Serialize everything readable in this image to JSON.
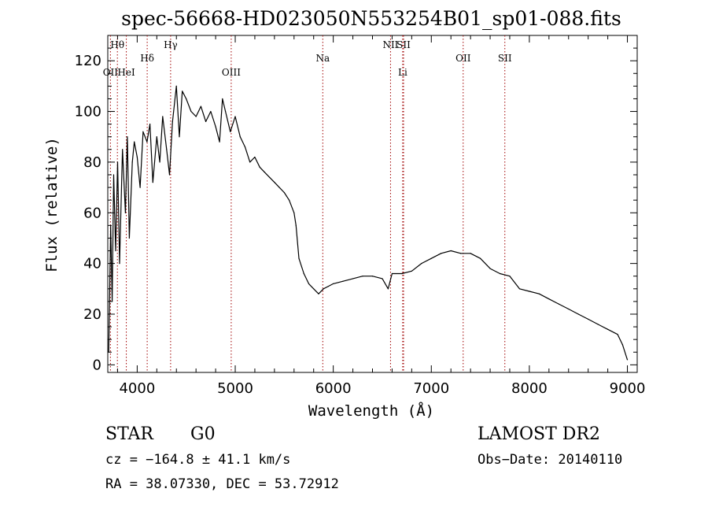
{
  "chart_data": {
    "type": "line",
    "title": "spec-56668-HD023050N553254B01_sp01-088.fits",
    "xlabel": "Wavelength (Å)",
    "ylabel": "Flux (relative)",
    "xlim": [
      3700,
      9100
    ],
    "ylim": [
      -3,
      130
    ],
    "x_ticks": [
      4000,
      5000,
      6000,
      7000,
      8000,
      9000
    ],
    "y_ticks": [
      0,
      20,
      40,
      60,
      80,
      100,
      120
    ],
    "grid": false,
    "series": [
      {
        "color": "#000000",
        "x": [
          3710,
          3730,
          3745,
          3760,
          3780,
          3800,
          3820,
          3850,
          3880,
          3900,
          3920,
          3950,
          3970,
          4000,
          4030,
          4060,
          4100,
          4130,
          4160,
          4200,
          4230,
          4260,
          4300,
          4330,
          4360,
          4400,
          4430,
          4460,
          4500,
          4550,
          4600,
          4650,
          4700,
          4750,
          4800,
          4840,
          4870,
          4900,
          4950,
          5000,
          5050,
          5100,
          5150,
          5200,
          5250,
          5300,
          5350,
          5400,
          5450,
          5500,
          5550,
          5600,
          5620,
          5650,
          5700,
          5750,
          5800,
          5850,
          5900,
          5950,
          6000,
          6100,
          6200,
          6300,
          6400,
          6500,
          6560,
          6600,
          6700,
          6800,
          6900,
          7000,
          7100,
          7200,
          7300,
          7400,
          7500,
          7600,
          7700,
          7800,
          7900,
          8000,
          8100,
          8200,
          8300,
          8400,
          8500,
          8600,
          8700,
          8800,
          8900,
          8950,
          9000
        ],
        "values": [
          5,
          55,
          25,
          75,
          45,
          80,
          40,
          85,
          60,
          90,
          50,
          80,
          88,
          82,
          70,
          92,
          88,
          95,
          72,
          90,
          80,
          98,
          85,
          75,
          96,
          110,
          90,
          108,
          105,
          100,
          98,
          102,
          96,
          100,
          94,
          88,
          105,
          100,
          92,
          98,
          90,
          86,
          80,
          82,
          78,
          76,
          74,
          72,
          70,
          68,
          65,
          60,
          55,
          42,
          36,
          32,
          30,
          28,
          30,
          31,
          32,
          33,
          34,
          35,
          35,
          34,
          30,
          36,
          36,
          37,
          40,
          42,
          44,
          45,
          44,
          44,
          42,
          38,
          36,
          35,
          30,
          29,
          28,
          26,
          24,
          22,
          20,
          18,
          16,
          14,
          12,
          8,
          2
        ]
      }
    ],
    "spectral_lines": [
      {
        "label": "Hθ",
        "x": 3798,
        "row": 1
      },
      {
        "label": "OII",
        "x": 3727,
        "row": 3
      },
      {
        "label": "HeI",
        "x": 3889,
        "row": 3
      },
      {
        "label": "Hδ",
        "x": 4102,
        "row": 2
      },
      {
        "label": "Hγ",
        "x": 4341,
        "row": 1
      },
      {
        "label": "OIII",
        "x": 4959,
        "row": 3
      },
      {
        "label": "Na",
        "x": 5893,
        "row": 2
      },
      {
        "label": "NII",
        "x": 6584,
        "row": 1
      },
      {
        "label": "SII",
        "x": 6717,
        "row": 1
      },
      {
        "label": "Li",
        "x": 6708,
        "row": 3
      },
      {
        "label": "OII",
        "x": 7325,
        "row": 2
      },
      {
        "label": "SII",
        "x": 7750,
        "row": 2
      }
    ]
  },
  "info": {
    "object_type": "STAR",
    "subclass": "G0",
    "survey": "LAMOST DR2",
    "velocity": "cz = −164.8 ± 41.1 km/s",
    "obs_date": "Obs−Date: 20140110",
    "coords": "RA =  38.07330, DEC =  53.72912"
  }
}
